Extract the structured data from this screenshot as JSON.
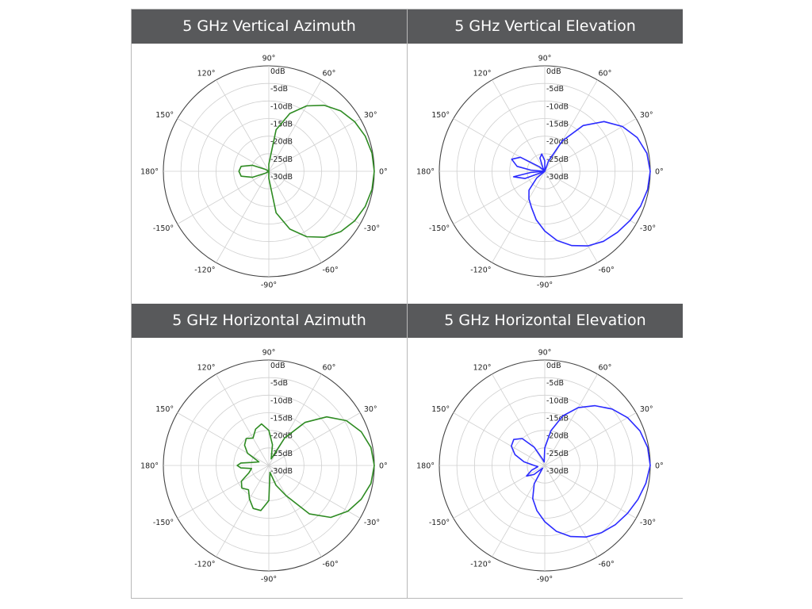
{
  "chart_data": [
    {
      "type": "polar",
      "title": "5 GHz Vertical Azimuth",
      "color": "#2e8b22",
      "angle_labels": [
        "0°",
        "30°",
        "60°",
        "90°",
        "120°",
        "150°",
        "180°",
        "-150°",
        "-120°",
        "-90°",
        "-60°",
        "-30°"
      ],
      "radial_labels": [
        "0dB",
        "-5dB",
        "-10dB",
        "-15dB",
        "-20dB",
        "-25dB",
        "-30dB"
      ],
      "rlim": [
        -30,
        0
      ],
      "grid": true,
      "series": [
        {
          "angle_deg": [
            0,
            10,
            20,
            30,
            40,
            50,
            60,
            70,
            80,
            90,
            100,
            110,
            120,
            130,
            140,
            150,
            160,
            170,
            180,
            190,
            200,
            210,
            220,
            230,
            240,
            250,
            260,
            270,
            280,
            290,
            300,
            310,
            320,
            330,
            340,
            350,
            360
          ],
          "gain_db": [
            0,
            -0.2,
            -0.8,
            -1.8,
            -3.3,
            -5.5,
            -8.5,
            -12.5,
            -18,
            -28,
            -30,
            -30,
            -30,
            -30,
            -30,
            -29,
            -25,
            -22,
            -21.5,
            -22,
            -25,
            -29,
            -30,
            -30,
            -30,
            -30,
            -30,
            -28,
            -18,
            -12.5,
            -8.5,
            -5.5,
            -3.3,
            -1.8,
            -0.8,
            -0.2,
            0
          ]
        }
      ]
    },
    {
      "type": "polar",
      "title": "5 GHz Vertical Elevation",
      "color": "#2b2bff",
      "angle_labels": [
        "0°",
        "30°",
        "60°",
        "90°",
        "120°",
        "150°",
        "180°",
        "-150°",
        "-120°",
        "-90°",
        "-60°",
        "-30°"
      ],
      "radial_labels": [
        "0dB",
        "-5dB",
        "-10dB",
        "-15dB",
        "-20dB",
        "-25dB",
        "-30dB"
      ],
      "rlim": [
        -30,
        0
      ],
      "grid": true,
      "series": [
        {
          "angle_deg": [
            0,
            10,
            20,
            30,
            40,
            50,
            60,
            70,
            80,
            90,
            100,
            110,
            120,
            130,
            140,
            150,
            160,
            170,
            175,
            180,
            185,
            190,
            200,
            210,
            220,
            230,
            240,
            250,
            260,
            270,
            280,
            290,
            300,
            310,
            320,
            330,
            340,
            350,
            360
          ],
          "gain_db": [
            0,
            -0.5,
            -2,
            -4.5,
            -8,
            -13,
            -20,
            -27,
            -30,
            -27,
            -25,
            -26,
            -29,
            -30,
            -28,
            -22,
            -20,
            -22,
            -26,
            -30,
            -26,
            -21,
            -24,
            -30,
            -27,
            -23,
            -21,
            -19,
            -16,
            -13,
            -10,
            -7.5,
            -5.5,
            -4,
            -3,
            -2,
            -1,
            -0.3,
            0
          ]
        }
      ]
    },
    {
      "type": "polar",
      "title": "5 GHz Horizontal Azimuth",
      "color": "#2e8b22",
      "angle_labels": [
        "0°",
        "30°",
        "60°",
        "90°",
        "120°",
        "150°",
        "180°",
        "-150°",
        "-120°",
        "-90°",
        "-60°",
        "-30°"
      ],
      "radial_labels": [
        "0dB",
        "-5dB",
        "-10dB",
        "-15dB",
        "-20dB",
        "-25dB",
        "-30dB"
      ],
      "rlim": [
        -30,
        0
      ],
      "grid": true,
      "series": [
        {
          "angle_deg": [
            0,
            10,
            20,
            30,
            40,
            50,
            60,
            70,
            80,
            90,
            100,
            110,
            120,
            130,
            140,
            150,
            160,
            170,
            175,
            180,
            185,
            190,
            200,
            210,
            220,
            230,
            240,
            250,
            260,
            270,
            280,
            290,
            300,
            310,
            320,
            330,
            340,
            350,
            360
          ],
          "gain_db": [
            0,
            -0.5,
            -2,
            -4.5,
            -8.5,
            -14,
            -21,
            -28,
            -24,
            -20,
            -18,
            -19,
            -21,
            -20,
            -21,
            -23,
            -27,
            -25,
            -22,
            -21,
            -22,
            -25,
            -24,
            -21,
            -20,
            -21,
            -19,
            -17,
            -17,
            -20,
            -28,
            -24,
            -20,
            -12,
            -7,
            -4,
            -2,
            -0.5,
            0
          ]
        }
      ]
    },
    {
      "type": "polar",
      "title": "5 GHz Horizontal Elevation",
      "color": "#2b2bff",
      "angle_labels": [
        "0°",
        "30°",
        "60°",
        "90°",
        "120°",
        "150°",
        "180°",
        "-150°",
        "-120°",
        "-90°",
        "-60°",
        "-30°"
      ],
      "radial_labels": [
        "0dB",
        "-5dB",
        "-10dB",
        "-15dB",
        "-20dB",
        "-25dB",
        "-30dB"
      ],
      "rlim": [
        -30,
        0
      ],
      "grid": true,
      "series": [
        {
          "angle_deg": [
            0,
            10,
            20,
            30,
            40,
            50,
            60,
            70,
            80,
            90,
            100,
            110,
            120,
            130,
            140,
            150,
            160,
            170,
            180,
            190,
            200,
            210,
            220,
            230,
            240,
            250,
            260,
            270,
            280,
            290,
            300,
            310,
            320,
            330,
            340,
            350,
            360
          ],
          "gain_db": [
            0,
            -0.3,
            -1.2,
            -2.8,
            -5,
            -7.8,
            -11,
            -15,
            -20,
            -25,
            -29,
            -28,
            -24,
            -20,
            -18.5,
            -19,
            -21,
            -24,
            -27,
            -28,
            -26,
            -24,
            -26,
            -29,
            -24,
            -20,
            -17,
            -14,
            -11,
            -8.5,
            -6.5,
            -5,
            -3.8,
            -2.8,
            -1.8,
            -0.8,
            0
          ]
        }
      ]
    }
  ]
}
